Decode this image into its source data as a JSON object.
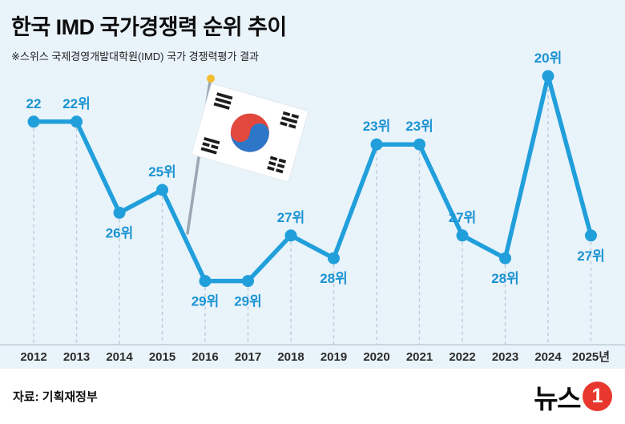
{
  "header": {
    "title": "한국 IMD 국가경쟁력 순위 추이",
    "subtitle": "※스위스 국제경영개발대학원(IMD) 국가 경쟁력평가 결과"
  },
  "chart_data": {
    "type": "line",
    "title": "한국 IMD 국가경쟁력 순위 추이",
    "subtitle": "※스위스 국제경영개발대학원(IMD) 국가 경쟁력평가 결과",
    "categories": [
      "2012",
      "2013",
      "2014",
      "2015",
      "2016",
      "2017",
      "2018",
      "2019",
      "2020",
      "2021",
      "2022",
      "2023",
      "2024",
      "2025년"
    ],
    "values": [
      22,
      22,
      26,
      25,
      29,
      29,
      27,
      28,
      23,
      23,
      27,
      28,
      20,
      27
    ],
    "point_labels": [
      "22",
      "22위",
      "26위",
      "25위",
      "29위",
      "29위",
      "27위",
      "28위",
      "23위",
      "23위",
      "27위",
      "28위",
      "20위",
      "27위"
    ],
    "label_position": [
      "above",
      "above",
      "below",
      "above",
      "below",
      "below",
      "above",
      "below",
      "above",
      "above",
      "above",
      "below",
      "above",
      "below"
    ],
    "unit": "위 (rank)",
    "y_inverted": true,
    "ylim": [
      19,
      30
    ],
    "xlabel": "",
    "ylabel": "IMD 국가경쟁력 순위",
    "gridlines": "vertical-dashed-per-point",
    "legend": "none"
  },
  "footer": {
    "source": "자료: 기획재정부",
    "logo_text": "뉴스",
    "logo_badge": "1"
  },
  "colors": {
    "background": "#e9f3fa",
    "line": "#219fdb",
    "point_label": "#1b93d2",
    "year_label": "#2b2b2b",
    "dashed": "#bccad7",
    "axis": "#b6c6d2",
    "footer_bg": "#ffffff",
    "logo_red": "#e8372d",
    "flag_red": "#e2483d",
    "flag_blue": "#2e77c8"
  }
}
